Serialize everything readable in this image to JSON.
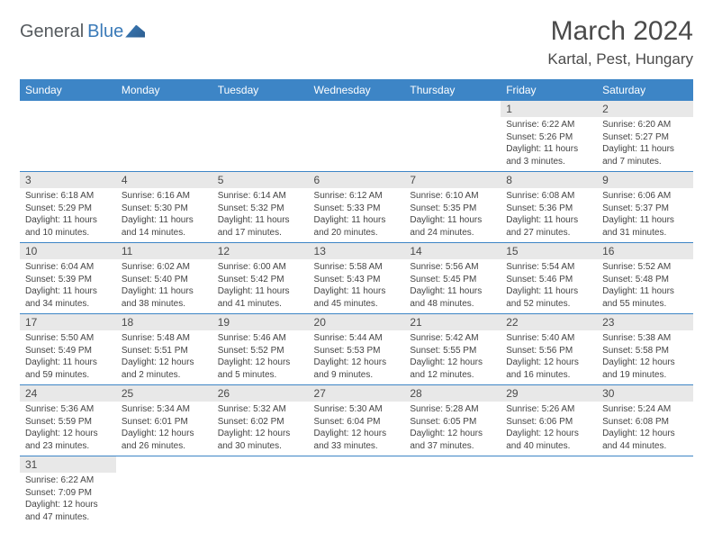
{
  "logo": {
    "part1": "General",
    "part2": "Blue"
  },
  "title": "March 2024",
  "location": "Kartal, Pest, Hungary",
  "colors": {
    "header_bg": "#3d85c6",
    "header_fg": "#ffffff",
    "daynum_bg": "#e8e8e8",
    "border": "#3d85c6"
  },
  "weekdays": [
    "Sunday",
    "Monday",
    "Tuesday",
    "Wednesday",
    "Thursday",
    "Friday",
    "Saturday"
  ],
  "weeks": [
    [
      null,
      null,
      null,
      null,
      null,
      {
        "d": "1",
        "sr": "Sunrise: 6:22 AM",
        "ss": "Sunset: 5:26 PM",
        "dl1": "Daylight: 11 hours",
        "dl2": "and 3 minutes."
      },
      {
        "d": "2",
        "sr": "Sunrise: 6:20 AM",
        "ss": "Sunset: 5:27 PM",
        "dl1": "Daylight: 11 hours",
        "dl2": "and 7 minutes."
      }
    ],
    [
      {
        "d": "3",
        "sr": "Sunrise: 6:18 AM",
        "ss": "Sunset: 5:29 PM",
        "dl1": "Daylight: 11 hours",
        "dl2": "and 10 minutes."
      },
      {
        "d": "4",
        "sr": "Sunrise: 6:16 AM",
        "ss": "Sunset: 5:30 PM",
        "dl1": "Daylight: 11 hours",
        "dl2": "and 14 minutes."
      },
      {
        "d": "5",
        "sr": "Sunrise: 6:14 AM",
        "ss": "Sunset: 5:32 PM",
        "dl1": "Daylight: 11 hours",
        "dl2": "and 17 minutes."
      },
      {
        "d": "6",
        "sr": "Sunrise: 6:12 AM",
        "ss": "Sunset: 5:33 PM",
        "dl1": "Daylight: 11 hours",
        "dl2": "and 20 minutes."
      },
      {
        "d": "7",
        "sr": "Sunrise: 6:10 AM",
        "ss": "Sunset: 5:35 PM",
        "dl1": "Daylight: 11 hours",
        "dl2": "and 24 minutes."
      },
      {
        "d": "8",
        "sr": "Sunrise: 6:08 AM",
        "ss": "Sunset: 5:36 PM",
        "dl1": "Daylight: 11 hours",
        "dl2": "and 27 minutes."
      },
      {
        "d": "9",
        "sr": "Sunrise: 6:06 AM",
        "ss": "Sunset: 5:37 PM",
        "dl1": "Daylight: 11 hours",
        "dl2": "and 31 minutes."
      }
    ],
    [
      {
        "d": "10",
        "sr": "Sunrise: 6:04 AM",
        "ss": "Sunset: 5:39 PM",
        "dl1": "Daylight: 11 hours",
        "dl2": "and 34 minutes."
      },
      {
        "d": "11",
        "sr": "Sunrise: 6:02 AM",
        "ss": "Sunset: 5:40 PM",
        "dl1": "Daylight: 11 hours",
        "dl2": "and 38 minutes."
      },
      {
        "d": "12",
        "sr": "Sunrise: 6:00 AM",
        "ss": "Sunset: 5:42 PM",
        "dl1": "Daylight: 11 hours",
        "dl2": "and 41 minutes."
      },
      {
        "d": "13",
        "sr": "Sunrise: 5:58 AM",
        "ss": "Sunset: 5:43 PM",
        "dl1": "Daylight: 11 hours",
        "dl2": "and 45 minutes."
      },
      {
        "d": "14",
        "sr": "Sunrise: 5:56 AM",
        "ss": "Sunset: 5:45 PM",
        "dl1": "Daylight: 11 hours",
        "dl2": "and 48 minutes."
      },
      {
        "d": "15",
        "sr": "Sunrise: 5:54 AM",
        "ss": "Sunset: 5:46 PM",
        "dl1": "Daylight: 11 hours",
        "dl2": "and 52 minutes."
      },
      {
        "d": "16",
        "sr": "Sunrise: 5:52 AM",
        "ss": "Sunset: 5:48 PM",
        "dl1": "Daylight: 11 hours",
        "dl2": "and 55 minutes."
      }
    ],
    [
      {
        "d": "17",
        "sr": "Sunrise: 5:50 AM",
        "ss": "Sunset: 5:49 PM",
        "dl1": "Daylight: 11 hours",
        "dl2": "and 59 minutes."
      },
      {
        "d": "18",
        "sr": "Sunrise: 5:48 AM",
        "ss": "Sunset: 5:51 PM",
        "dl1": "Daylight: 12 hours",
        "dl2": "and 2 minutes."
      },
      {
        "d": "19",
        "sr": "Sunrise: 5:46 AM",
        "ss": "Sunset: 5:52 PM",
        "dl1": "Daylight: 12 hours",
        "dl2": "and 5 minutes."
      },
      {
        "d": "20",
        "sr": "Sunrise: 5:44 AM",
        "ss": "Sunset: 5:53 PM",
        "dl1": "Daylight: 12 hours",
        "dl2": "and 9 minutes."
      },
      {
        "d": "21",
        "sr": "Sunrise: 5:42 AM",
        "ss": "Sunset: 5:55 PM",
        "dl1": "Daylight: 12 hours",
        "dl2": "and 12 minutes."
      },
      {
        "d": "22",
        "sr": "Sunrise: 5:40 AM",
        "ss": "Sunset: 5:56 PM",
        "dl1": "Daylight: 12 hours",
        "dl2": "and 16 minutes."
      },
      {
        "d": "23",
        "sr": "Sunrise: 5:38 AM",
        "ss": "Sunset: 5:58 PM",
        "dl1": "Daylight: 12 hours",
        "dl2": "and 19 minutes."
      }
    ],
    [
      {
        "d": "24",
        "sr": "Sunrise: 5:36 AM",
        "ss": "Sunset: 5:59 PM",
        "dl1": "Daylight: 12 hours",
        "dl2": "and 23 minutes."
      },
      {
        "d": "25",
        "sr": "Sunrise: 5:34 AM",
        "ss": "Sunset: 6:01 PM",
        "dl1": "Daylight: 12 hours",
        "dl2": "and 26 minutes."
      },
      {
        "d": "26",
        "sr": "Sunrise: 5:32 AM",
        "ss": "Sunset: 6:02 PM",
        "dl1": "Daylight: 12 hours",
        "dl2": "and 30 minutes."
      },
      {
        "d": "27",
        "sr": "Sunrise: 5:30 AM",
        "ss": "Sunset: 6:04 PM",
        "dl1": "Daylight: 12 hours",
        "dl2": "and 33 minutes."
      },
      {
        "d": "28",
        "sr": "Sunrise: 5:28 AM",
        "ss": "Sunset: 6:05 PM",
        "dl1": "Daylight: 12 hours",
        "dl2": "and 37 minutes."
      },
      {
        "d": "29",
        "sr": "Sunrise: 5:26 AM",
        "ss": "Sunset: 6:06 PM",
        "dl1": "Daylight: 12 hours",
        "dl2": "and 40 minutes."
      },
      {
        "d": "30",
        "sr": "Sunrise: 5:24 AM",
        "ss": "Sunset: 6:08 PM",
        "dl1": "Daylight: 12 hours",
        "dl2": "and 44 minutes."
      }
    ],
    [
      {
        "d": "31",
        "sr": "Sunrise: 6:22 AM",
        "ss": "Sunset: 7:09 PM",
        "dl1": "Daylight: 12 hours",
        "dl2": "and 47 minutes."
      },
      null,
      null,
      null,
      null,
      null,
      null
    ]
  ]
}
